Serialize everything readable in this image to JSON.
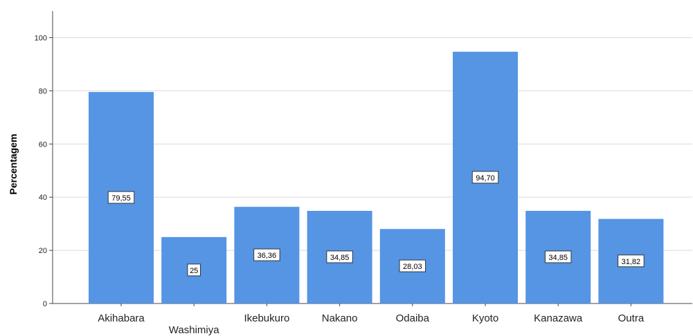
{
  "chart_data": {
    "type": "bar",
    "ylabel": "Percentagem",
    "ylim": [
      0,
      110
    ],
    "yticks": [
      0,
      20,
      40,
      60,
      80,
      100
    ],
    "grid": true,
    "bar_color": "#5595e4",
    "categories": [
      "Akihabara",
      "Washimiya",
      "Ikebukuro",
      "Nakano",
      "Odaiba",
      "Kyoto",
      "Kanazawa",
      "Outra"
    ],
    "values": [
      79.55,
      25,
      36.36,
      34.85,
      28.03,
      94.7,
      34.85,
      31.82
    ],
    "data_labels": [
      "79,55",
      "25",
      "36,36",
      "34,85",
      "28,03",
      "94,70",
      "34,85",
      "31,82"
    ],
    "staggered_category_labels": [
      "Washimiya"
    ]
  }
}
